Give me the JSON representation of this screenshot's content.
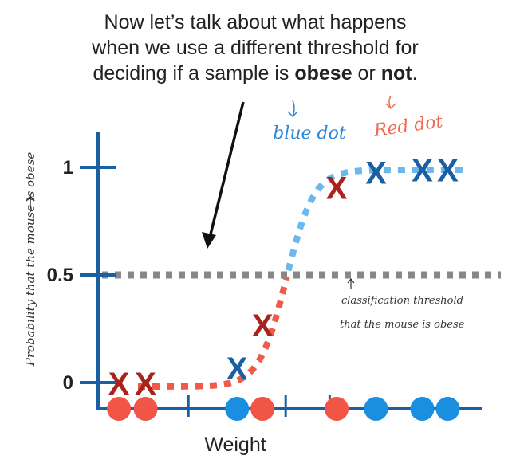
{
  "title": {
    "line1": "Now let’s talk about what happens",
    "line2": "when we use a different threshold for",
    "line3_prefix": "deciding if a sample is ",
    "kw_obese": "obese",
    "mid": " or ",
    "kw_not": "not",
    "suffix": "."
  },
  "annotations": {
    "blue_note": "blue dot",
    "red_note": "Red dot",
    "threshold_line1": "classification threshold",
    "threshold_line2": "that the mouse is obese"
  },
  "colors": {
    "axis": "#1a5fa3",
    "obese": "#1a8fe0",
    "not_obese": "#f05545",
    "x_blue": "#1a5fa3",
    "x_red": "#a8231c",
    "curve_blue": "#6bb8ec",
    "curve_red": "#ef5a4a",
    "threshold": "#888888",
    "arrow": "#111111",
    "handwriting": "#333333"
  },
  "chart_data": {
    "type": "scatter",
    "xlabel": "Weight",
    "ylabel": "Probability that the mouse is obese",
    "y_ticks": [
      "0",
      "0.5",
      "1"
    ],
    "ylim": [
      0,
      1
    ],
    "threshold": 0.5,
    "threshold_label": "0.5",
    "weights": [
      0.9,
      2.05,
      6.0,
      7.1,
      10.3,
      12.0,
      14.0,
      15.1
    ],
    "classes": [
      "not",
      "not",
      "obese",
      "not",
      "not",
      "obese",
      "obese",
      "obese"
    ],
    "predicted_probability": [
      0.0,
      0.0,
      0.07,
      0.27,
      0.91,
      0.98,
      0.99,
      0.99
    ],
    "x_ticks_weight": [
      3.9,
      8.1,
      10.0
    ],
    "curve_colors": "blue above the threshold, red below"
  }
}
